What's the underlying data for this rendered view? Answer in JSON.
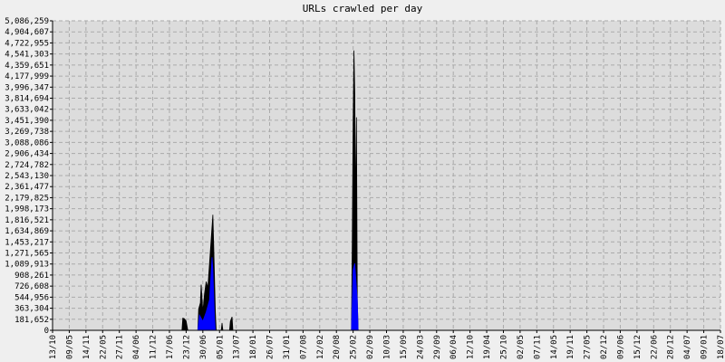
{
  "chart_data": {
    "type": "area",
    "title": "URLs crawled per day",
    "xlim": [
      0,
      40
    ],
    "xticks": [
      {
        "value": 0,
        "label": "13/10"
      },
      {
        "value": 1,
        "label": "09/05"
      },
      {
        "value": 2,
        "label": "14/11"
      },
      {
        "value": 3,
        "label": "22/05"
      },
      {
        "value": 4,
        "label": "27/11"
      },
      {
        "value": 5,
        "label": "04/06"
      },
      {
        "value": 6,
        "label": "11/12"
      },
      {
        "value": 7,
        "label": "17/06"
      },
      {
        "value": 8,
        "label": "23/12"
      },
      {
        "value": 9,
        "label": "30/06"
      },
      {
        "value": 10,
        "label": "05/01"
      },
      {
        "value": 11,
        "label": "13/07"
      },
      {
        "value": 12,
        "label": "18/01"
      },
      {
        "value": 13,
        "label": "26/07"
      },
      {
        "value": 14,
        "label": "31/01"
      },
      {
        "value": 15,
        "label": "07/08"
      },
      {
        "value": 16,
        "label": "12/02"
      },
      {
        "value": 17,
        "label": "20/08"
      },
      {
        "value": 18,
        "label": "25/02"
      },
      {
        "value": 19,
        "label": "02/09"
      },
      {
        "value": 20,
        "label": "10/03"
      },
      {
        "value": 21,
        "label": "15/09"
      },
      {
        "value": 22,
        "label": "24/03"
      },
      {
        "value": 23,
        "label": "29/09"
      },
      {
        "value": 24,
        "label": "06/04"
      },
      {
        "value": 25,
        "label": "12/10"
      },
      {
        "value": 26,
        "label": "19/04"
      },
      {
        "value": 27,
        "label": "25/10"
      },
      {
        "value": 28,
        "label": "02/05"
      },
      {
        "value": 29,
        "label": "07/11"
      },
      {
        "value": 30,
        "label": "14/05"
      },
      {
        "value": 31,
        "label": "19/11"
      },
      {
        "value": 32,
        "label": "27/05"
      },
      {
        "value": 33,
        "label": "02/12"
      },
      {
        "value": 34,
        "label": "09/06"
      },
      {
        "value": 35,
        "label": "15/12"
      },
      {
        "value": 36,
        "label": "22/06"
      },
      {
        "value": 37,
        "label": "28/12"
      },
      {
        "value": 38,
        "label": "04/07"
      },
      {
        "value": 39,
        "label": "09/01"
      },
      {
        "value": 40,
        "label": "18/07"
      }
    ],
    "ylim": [
      0,
      5086259
    ],
    "yticks": [
      0,
      {
        "value": 181652,
        "label": "181,652"
      },
      {
        "value": 363304,
        "label": "363,304"
      },
      {
        "value": 544956,
        "label": "544,956"
      },
      {
        "value": 726608,
        "label": "726,608"
      },
      {
        "value": 908261,
        "label": "908,261"
      },
      {
        "value": 1089913,
        "label": "1,089,913"
      },
      {
        "value": 1271565,
        "label": "1,271,565"
      },
      {
        "value": 1453217,
        "label": "1,453,217"
      },
      {
        "value": 1634869,
        "label": "1,634,869"
      },
      {
        "value": 1816521,
        "label": "1,816,521"
      },
      {
        "value": 1998173,
        "label": "1,998,173"
      },
      {
        "value": 2179825,
        "label": "2,179,825"
      },
      {
        "value": 2361477,
        "label": "2,361,477"
      },
      {
        "value": 2543130,
        "label": "2,543,130"
      },
      {
        "value": 2724782,
        "label": "2,724,782"
      },
      {
        "value": 2906434,
        "label": "2,906,434"
      },
      {
        "value": 3088086,
        "label": "3,088,086"
      },
      {
        "value": 3269738,
        "label": "3,269,738"
      },
      {
        "value": 3451390,
        "label": "3,451,390"
      },
      {
        "value": 3633042,
        "label": "3,633,042"
      },
      {
        "value": 3814694,
        "label": "3,814,694"
      },
      {
        "value": 3996347,
        "label": "3,996,347"
      },
      {
        "value": 4177999,
        "label": "4,177,999"
      },
      {
        "value": 4359651,
        "label": "4,359,651"
      },
      {
        "value": 4541303,
        "label": "4,541,303"
      },
      {
        "value": 4722955,
        "label": "4,722,955"
      },
      {
        "value": 4904607,
        "label": "4,904,607"
      },
      {
        "value": 5086259,
        "label": "5,086,259"
      }
    ],
    "grid": true,
    "series": [
      {
        "color": "#000000",
        "x": [
          7.75,
          7.8,
          7.9,
          8.0,
          8.1,
          8.7,
          8.75,
          8.85,
          8.9,
          9.0,
          9.1,
          9.2,
          9.3,
          9.4,
          9.5,
          9.55,
          9.6,
          9.65,
          9.75,
          9.8,
          10.1,
          10.15,
          10.2,
          10.6,
          10.65,
          10.75,
          10.8,
          17.9,
          17.95,
          18.0,
          18.05,
          18.1,
          18.15,
          18.2,
          18.25,
          18.3
        ],
        "values": [
          0,
          200000,
          190000,
          150000,
          0,
          0,
          350000,
          450000,
          750000,
          300000,
          600000,
          800000,
          700000,
          1100000,
          1500000,
          1700000,
          1900000,
          1400000,
          300000,
          0,
          0,
          120000,
          0,
          0,
          150000,
          220000,
          0,
          0,
          1500000,
          3400000,
          4600000,
          3900000,
          1900000,
          3500000,
          500000,
          0
        ]
      },
      {
        "color": "#0000ff",
        "x": [
          8.7,
          8.8,
          9.0,
          9.2,
          9.4,
          9.55,
          9.6,
          9.7,
          9.75,
          17.9,
          18.0,
          18.1,
          18.2,
          18.25,
          18.3
        ],
        "values": [
          0,
          250000,
          150000,
          300000,
          500000,
          1200000,
          1000000,
          200000,
          0,
          0,
          1000000,
          1100000,
          700000,
          500000,
          0
        ]
      }
    ]
  }
}
